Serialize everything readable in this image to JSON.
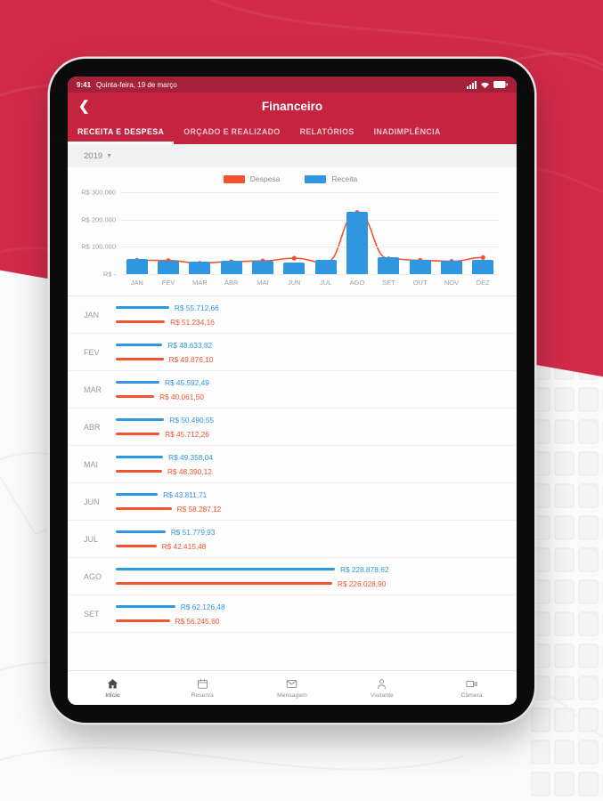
{
  "colors": {
    "background_red": "#d22b4a",
    "statusbar_red": "#a7203a",
    "header_red": "#c52441",
    "receita_blue": "#2f97e0",
    "despesa_orange": "#f55330",
    "muted_text": "#9aa0a6"
  },
  "status_bar": {
    "time": "9:41",
    "date": "Quinta-feira, 19 de março",
    "icons": [
      "signal-icon",
      "wifi-icon",
      "battery-icon"
    ]
  },
  "header": {
    "title": "Financeiro",
    "back_icon": "chevron-left-icon",
    "back_glyph": "❮"
  },
  "tabs": [
    {
      "label": "RECEITA E DESPESA",
      "active": true
    },
    {
      "label": "ORÇADO E REALIZADO",
      "active": false
    },
    {
      "label": "RELATÓRIOS",
      "active": false
    },
    {
      "label": "INADIMPLÊNCIA",
      "active": false
    }
  ],
  "filters": {
    "year": "2019",
    "dropdown_icon": "chevron-down-icon",
    "chevron_glyph": "▼"
  },
  "chart_data": {
    "type": "bar",
    "title": "",
    "categories": [
      "JAN",
      "FEV",
      "MAR",
      "ABR",
      "MAI",
      "JUN",
      "JUL",
      "AGO",
      "SET",
      "OUT",
      "NOV",
      "DEZ"
    ],
    "series": [
      {
        "name": "Despesa",
        "style": "line",
        "color": "#f55330",
        "values": [
          51234.16,
          49876.1,
          40061.5,
          45712.26,
          48390.12,
          58287.12,
          42415.48,
          226028.9,
          56245.6,
          50500,
          46800,
          61000
        ]
      },
      {
        "name": "Receita",
        "style": "bar",
        "color": "#2f97e0",
        "values": [
          55712.66,
          48633.82,
          45592.49,
          50490.55,
          49358.04,
          43811.71,
          51779.93,
          228878.62,
          62126.48,
          52000,
          47500,
          52500
        ]
      }
    ],
    "ylim": [
      0,
      300000
    ],
    "y_ticks": [
      {
        "value": 300000,
        "label": "R$ 300.000"
      },
      {
        "value": 200000,
        "label": "R$ 200.000"
      },
      {
        "value": 100000,
        "label": "R$ 100.000"
      },
      {
        "value": 0,
        "label": "R$ -"
      }
    ],
    "legend_position": "top",
    "grid": true
  },
  "monthly_list": {
    "rows": [
      {
        "month": "JAN",
        "receita": "R$ 55.712,66",
        "despesa": "R$ 51.234,16",
        "receita_value": 55712.66,
        "despesa_value": 51234.16
      },
      {
        "month": "FEV",
        "receita": "R$ 48.633,82",
        "despesa": "R$ 49.876,10",
        "receita_value": 48633.82,
        "despesa_value": 49876.1
      },
      {
        "month": "MAR",
        "receita": "R$ 45.592,49",
        "despesa": "R$ 40.061,50",
        "receita_value": 45592.49,
        "despesa_value": 40061.5
      },
      {
        "month": "ABR",
        "receita": "R$ 50.490,55",
        "despesa": "R$ 45.712,26",
        "receita_value": 50490.55,
        "despesa_value": 45712.26
      },
      {
        "month": "MAI",
        "receita": "R$ 49.358,04",
        "despesa": "R$ 48.390,12",
        "receita_value": 49358.04,
        "despesa_value": 48390.12
      },
      {
        "month": "JUN",
        "receita": "R$ 43.811,71",
        "despesa": "R$ 58.287,12",
        "receita_value": 43811.71,
        "despesa_value": 58287.12
      },
      {
        "month": "JUL",
        "receita": "R$ 51.779,93",
        "despesa": "R$ 42.415,48",
        "receita_value": 51779.93,
        "despesa_value": 42415.48
      },
      {
        "month": "AGO",
        "receita": "R$ 228.878,62",
        "despesa": "R$ 226.028,90",
        "receita_value": 228878.62,
        "despesa_value": 226028.9
      },
      {
        "month": "SET",
        "receita": "R$ 62.126,48",
        "despesa": "R$ 56.245,60",
        "receita_value": 62126.48,
        "despesa_value": 56245.6
      }
    ]
  },
  "bottom_nav": {
    "items": [
      {
        "label": "Início",
        "icon": "home-icon",
        "active": true
      },
      {
        "label": "Reserva",
        "icon": "calendar-icon",
        "active": false
      },
      {
        "label": "Mensagem",
        "icon": "envelope-icon",
        "active": false
      },
      {
        "label": "Visitante",
        "icon": "person-icon",
        "active": false
      },
      {
        "label": "Câmera",
        "icon": "camera-icon",
        "active": false
      }
    ]
  }
}
